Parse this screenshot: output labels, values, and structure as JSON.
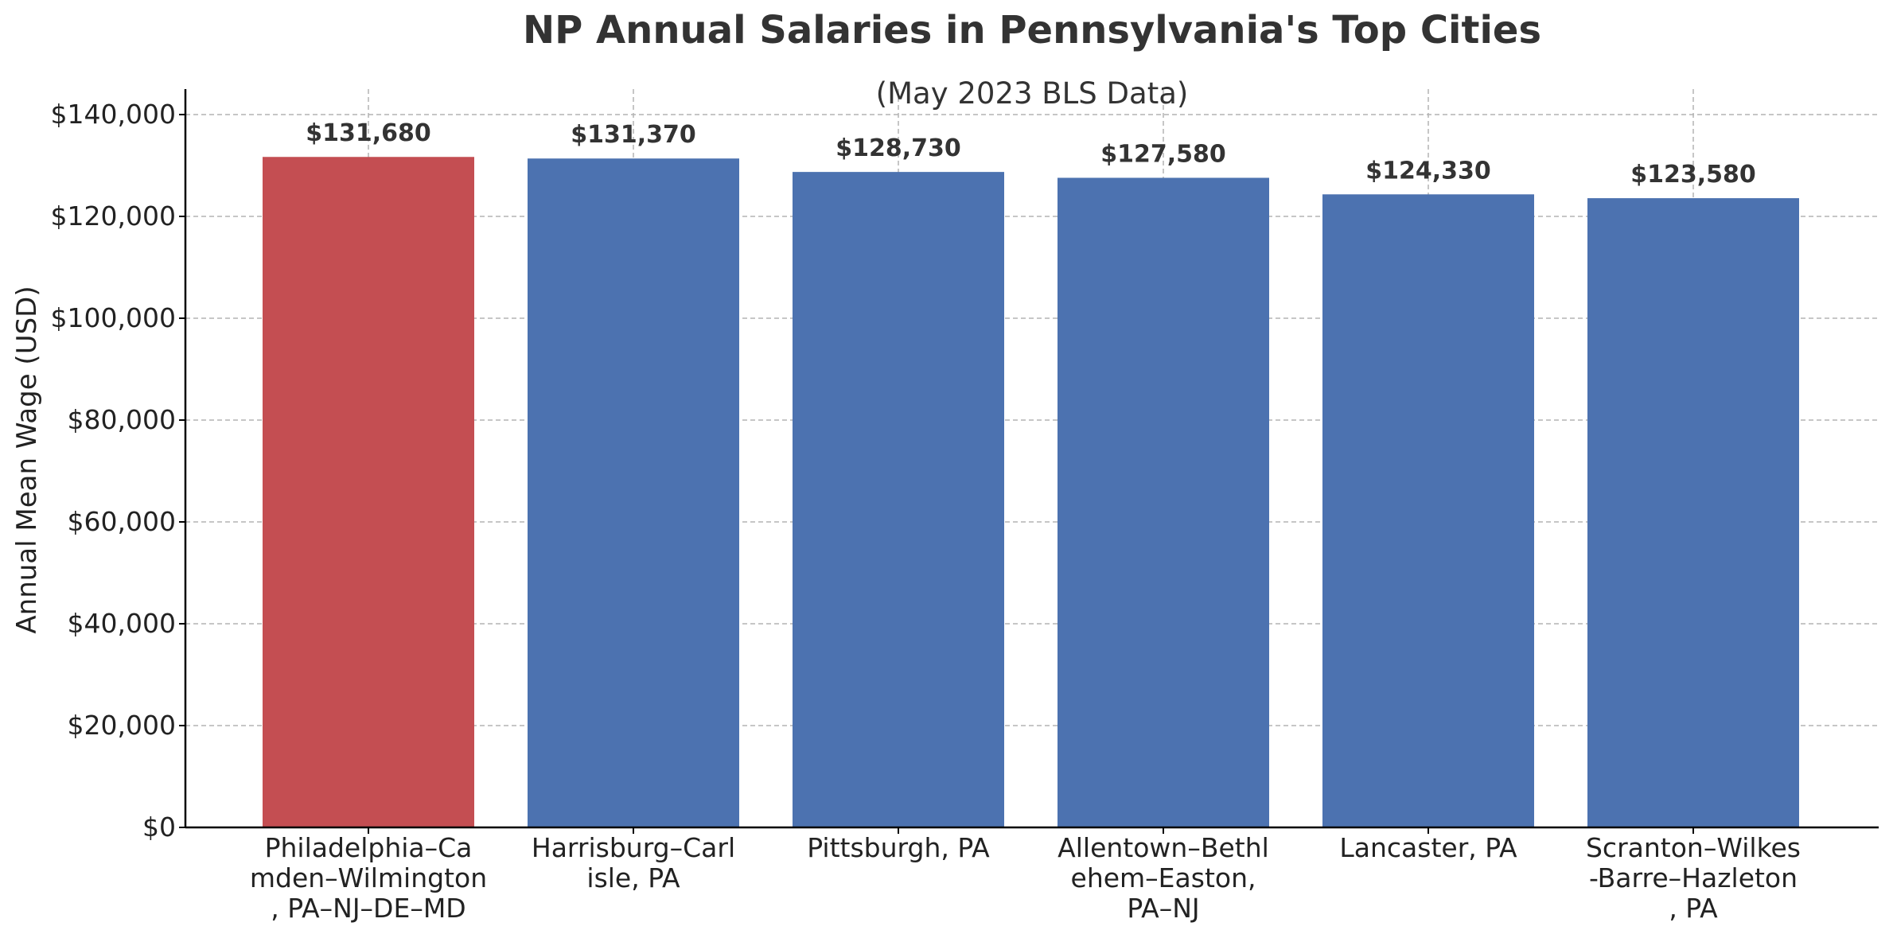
{
  "chart_data": {
    "type": "bar",
    "title": "NP Annual Salaries in Pennsylvania's Top Cities",
    "subtitle": "(May 2023 BLS Data)",
    "ylabel": "Annual Mean Wage (USD)",
    "xlabel": "",
    "ylim": [
      0,
      145000
    ],
    "yticks": [
      0,
      20000,
      40000,
      60000,
      80000,
      100000,
      120000,
      140000
    ],
    "ytick_labels": [
      "$0",
      "$20,000",
      "$40,000",
      "$60,000",
      "$80,000",
      "$100,000",
      "$120,000",
      "$140,000"
    ],
    "categories": [
      [
        "Philadelphia–Ca",
        "mden–Wilmington",
        ", PA–NJ–DE–MD"
      ],
      [
        "Harrisburg–Carl",
        "isle, PA"
      ],
      [
        "Pittsburgh, PA"
      ],
      [
        "Allentown–Bethl",
        "ehem–Easton,",
        "PA–NJ"
      ],
      [
        "Lancaster, PA"
      ],
      [
        "Scranton–Wilkes",
        "-Barre–Hazleton",
        ", PA"
      ]
    ],
    "values": [
      131680,
      131370,
      128730,
      127580,
      124330,
      123580
    ],
    "value_labels": [
      "$131,680",
      "$131,370",
      "$128,730",
      "$127,580",
      "$124,330",
      "$123,580"
    ],
    "colors": [
      "#c44e52",
      "#4c72b0",
      "#4c72b0",
      "#4c72b0",
      "#4c72b0",
      "#4c72b0"
    ],
    "grid": true,
    "legend": "none"
  }
}
